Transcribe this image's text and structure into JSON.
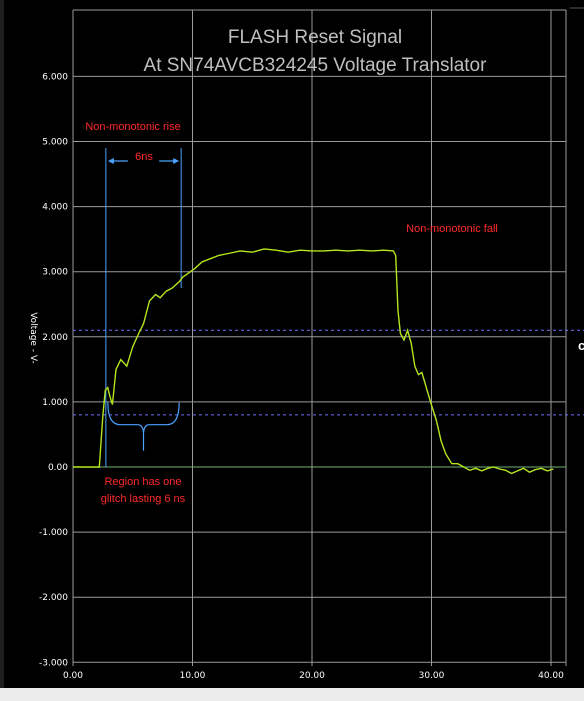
{
  "chart_data": {
    "type": "line",
    "title": "FLASH Reset Signal",
    "subtitle": "At SN74AVCB324245 Voltage Translator",
    "ylabel": "Voltage - V-",
    "xlabel": "",
    "xlim": [
      0,
      40
    ],
    "ylim": [
      -3,
      6.5
    ],
    "x_ticks": [
      "0.00",
      "10.00",
      "20.00",
      "30.00",
      "40.00"
    ],
    "y_ticks": [
      {
        "value": 6,
        "label": "6.000"
      },
      {
        "value": 5,
        "label": "5.000"
      },
      {
        "value": 4,
        "label": "4.000"
      },
      {
        "value": 3,
        "label": "3.000"
      },
      {
        "value": 2,
        "label": "2.000"
      },
      {
        "value": 1,
        "label": "1.000"
      },
      {
        "value": 0,
        "label": "0.00"
      },
      {
        "value": -1,
        "label": "-1.000"
      },
      {
        "value": -2,
        "label": "-2.000"
      },
      {
        "value": -3,
        "label": "-3.000"
      }
    ],
    "grid": true,
    "thresholds": [
      2.1,
      0.8
    ],
    "series": [
      {
        "name": "",
        "color": "#b5e61d",
        "x": [
          0,
          2.2,
          2.5,
          2.7,
          2.9,
          3.1,
          3.3,
          3.6,
          4.0,
          4.5,
          5.0,
          5.5,
          5.9,
          6.4,
          6.9,
          7.3,
          7.8,
          8.3,
          8.9,
          9.2,
          9.6,
          10.2,
          10.8,
          11.5,
          12.2,
          13.0,
          14.0,
          15.0,
          16.0,
          17.0,
          18.0,
          19.0,
          20.0,
          21.0,
          22.0,
          23.0,
          24.0,
          25.0,
          26.0,
          26.8,
          27.0,
          27.2,
          27.4,
          27.7,
          28.0,
          28.3,
          28.6,
          28.9,
          29.2,
          29.6,
          30.0,
          30.4,
          30.8,
          31.2,
          31.7,
          32.2,
          32.7,
          33.2,
          33.7,
          34.2,
          34.7,
          35.2,
          35.7,
          36.2,
          36.7,
          37.2,
          37.7,
          38.2,
          38.7,
          39.2,
          39.7,
          40.2
        ],
        "y": [
          0.0,
          0.0,
          0.8,
          1.18,
          1.22,
          1.08,
          0.96,
          1.5,
          1.65,
          1.55,
          1.85,
          2.05,
          2.2,
          2.55,
          2.65,
          2.6,
          2.7,
          2.75,
          2.85,
          2.92,
          2.97,
          3.05,
          3.15,
          3.2,
          3.25,
          3.28,
          3.32,
          3.3,
          3.35,
          3.33,
          3.3,
          3.33,
          3.32,
          3.32,
          3.33,
          3.32,
          3.33,
          3.32,
          3.33,
          3.32,
          3.25,
          2.4,
          2.05,
          1.95,
          2.1,
          1.9,
          1.55,
          1.42,
          1.45,
          1.2,
          0.95,
          0.72,
          0.4,
          0.2,
          0.05,
          0.05,
          0.0,
          -0.05,
          -0.02,
          -0.06,
          -0.02,
          0.0,
          -0.03,
          -0.05,
          -0.1,
          -0.06,
          -0.02,
          -0.08,
          -0.04,
          -0.02,
          -0.06,
          -0.03
        ]
      }
    ],
    "annotations": {
      "rise_label": "Non-monotonic rise",
      "width_label": "6ns",
      "fall_label": "Non-monotonic fall",
      "region_line1": "Region has one",
      "region_line2": "glitch lasting 6 ns",
      "edge_fragment": "c"
    }
  }
}
